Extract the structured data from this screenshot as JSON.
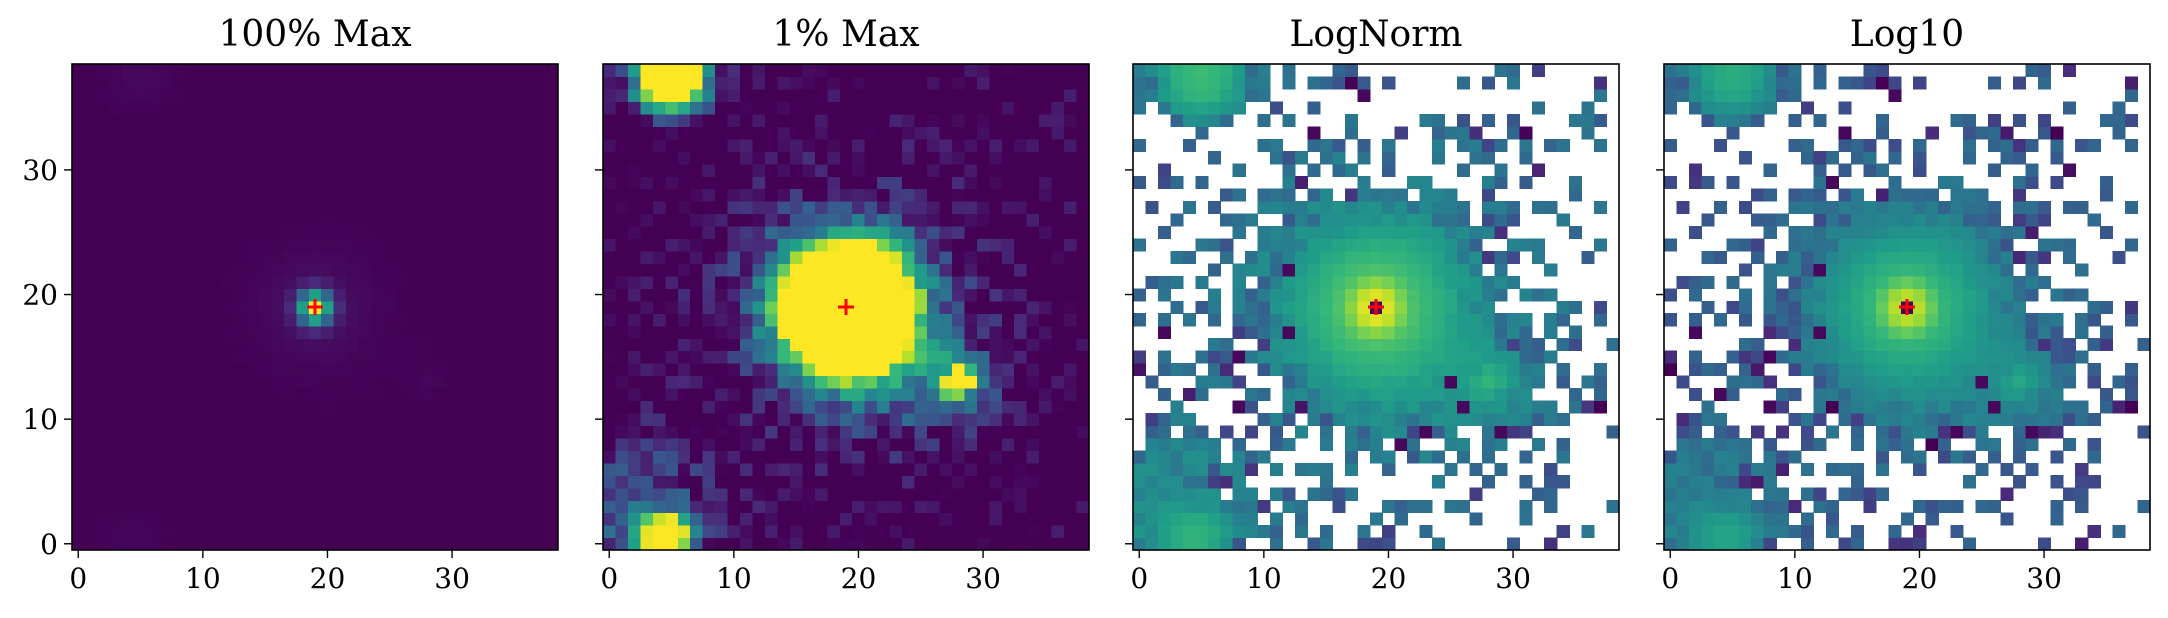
{
  "chart_data": [
    {
      "type": "heatmap",
      "title": "100% Max",
      "x_ticks": [
        "0",
        "10",
        "20",
        "30"
      ],
      "y_ticks": [
        "0",
        "10",
        "20",
        "30"
      ],
      "xlim": [
        -0.5,
        38.5
      ],
      "ylim": [
        -0.5,
        38.5
      ],
      "colormap": "viridis",
      "marker": {
        "x": 19,
        "y": 19,
        "symbol": "+",
        "color": "#ff0000"
      },
      "scale": "linear, vmax = max",
      "sources": [
        {
          "x": 19,
          "y": 19,
          "peak": 1.0
        },
        {
          "x": 5,
          "y": 37,
          "peak": 0.025
        },
        {
          "x": 28,
          "y": 13,
          "peak": 0.012
        }
      ]
    },
    {
      "type": "heatmap",
      "title": "1% Max",
      "x_ticks": [
        "0",
        "10",
        "20",
        "30"
      ],
      "y_ticks": [
        "0",
        "10",
        "20",
        "30"
      ],
      "xlim": [
        -0.5,
        38.5
      ],
      "ylim": [
        -0.5,
        38.5
      ],
      "colormap": "viridis",
      "marker": {
        "x": 19,
        "y": 19,
        "symbol": "+",
        "color": "#ff0000"
      },
      "scale": "linear, vmax = 1% of max",
      "sources": [
        {
          "x": 19,
          "y": 19,
          "peak": 1.0
        },
        {
          "x": 5,
          "y": 37,
          "peak": 0.025
        },
        {
          "x": 28,
          "y": 13,
          "peak": 0.012
        },
        {
          "x": 4,
          "y": 1,
          "peak": 0.014
        }
      ]
    },
    {
      "type": "heatmap",
      "title": "LogNorm",
      "x_ticks": [
        "0",
        "10",
        "20",
        "30"
      ],
      "y_ticks": [
        "0",
        "10",
        "20",
        "30"
      ],
      "xlim": [
        -0.5,
        38.5
      ],
      "ylim": [
        -0.5,
        38.5
      ],
      "colormap": "viridis",
      "marker": {
        "x": 19,
        "y": 19,
        "symbol": "+",
        "color": "#ff0000"
      },
      "scale": "log (non-positive pixels shown blank)"
    },
    {
      "type": "heatmap",
      "title": "Log10",
      "x_ticks": [
        "0",
        "10",
        "20",
        "30"
      ],
      "y_ticks": [
        "0",
        "10",
        "20",
        "30"
      ],
      "xlim": [
        -0.5,
        38.5
      ],
      "ylim": [
        -0.5,
        38.5
      ],
      "colormap": "viridis",
      "marker": {
        "x": 19,
        "y": 19,
        "symbol": "+",
        "color": "#ff0000"
      },
      "scale": "log10 (non-positive pixels shown blank)"
    }
  ]
}
